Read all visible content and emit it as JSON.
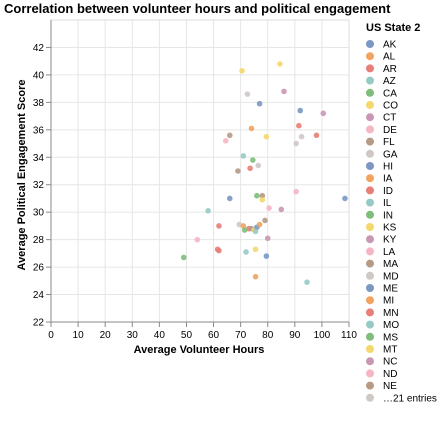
{
  "chart_data": {
    "type": "scatter",
    "title": "Correlation between volunteer hours and political engagement",
    "xlabel": "Average Volunteer Hours",
    "ylabel": "Average Political Engagement Score",
    "xlim": [
      0,
      110
    ],
    "ylim": [
      22,
      44
    ],
    "x_ticks": [
      0,
      10,
      20,
      30,
      40,
      50,
      60,
      70,
      80,
      90,
      100,
      110
    ],
    "y_ticks": [
      22,
      24,
      26,
      28,
      30,
      32,
      34,
      36,
      38,
      40,
      42
    ],
    "grid": true,
    "legend_position": "right",
    "legend": {
      "title": "US State 2",
      "entries": [
        {
          "label": "AK",
          "color": "#7b97c2"
        },
        {
          "label": "AL",
          "color": "#f2a35f"
        },
        {
          "label": "AR",
          "color": "#e87e78"
        },
        {
          "label": "AZ",
          "color": "#96cbc5"
        },
        {
          "label": "CA",
          "color": "#7fbe7a"
        },
        {
          "label": "CO",
          "color": "#f5d76e"
        },
        {
          "label": "CT",
          "color": "#c997b4"
        },
        {
          "label": "DE",
          "color": "#f5b6c3"
        },
        {
          "label": "FL",
          "color": "#b59a86"
        },
        {
          "label": "GA",
          "color": "#cfc8c6"
        },
        {
          "label": "HI",
          "color": "#7b97c2"
        },
        {
          "label": "IA",
          "color": "#f2a35f"
        },
        {
          "label": "ID",
          "color": "#e87e78"
        },
        {
          "label": "IL",
          "color": "#96cbc5"
        },
        {
          "label": "IN",
          "color": "#7fbe7a"
        },
        {
          "label": "KS",
          "color": "#f5d76e"
        },
        {
          "label": "KY",
          "color": "#c997b4"
        },
        {
          "label": "LA",
          "color": "#f5b6c3"
        },
        {
          "label": "MA",
          "color": "#b59a86"
        },
        {
          "label": "MD",
          "color": "#cfc8c6"
        },
        {
          "label": "ME",
          "color": "#7b97c2"
        },
        {
          "label": "MI",
          "color": "#f2a35f"
        },
        {
          "label": "MN",
          "color": "#e87e78"
        },
        {
          "label": "MO",
          "color": "#96cbc5"
        },
        {
          "label": "MS",
          "color": "#7fbe7a"
        },
        {
          "label": "MT",
          "color": "#f5d76e"
        },
        {
          "label": "NC",
          "color": "#c997b4"
        },
        {
          "label": "ND",
          "color": "#f5b6c3"
        },
        {
          "label": "NE",
          "color": "#b59a86"
        },
        {
          "label": "…21 entries",
          "color": "#cfc8c6"
        }
      ]
    },
    "points": [
      {
        "x": 84.5,
        "y": 40.8,
        "color": "#f5d76e"
      },
      {
        "x": 70.5,
        "y": 40.3,
        "color": "#f5d76e"
      },
      {
        "x": 72.5,
        "y": 38.6,
        "color": "#cfc8c6"
      },
      {
        "x": 86.0,
        "y": 38.8,
        "color": "#c997b4"
      },
      {
        "x": 77.0,
        "y": 37.9,
        "color": "#7b97c2"
      },
      {
        "x": 92.0,
        "y": 37.4,
        "color": "#7b97c2"
      },
      {
        "x": 100.5,
        "y": 37.2,
        "color": "#c997b4"
      },
      {
        "x": 74.0,
        "y": 36.1,
        "color": "#f2a35f"
      },
      {
        "x": 91.5,
        "y": 36.3,
        "color": "#e87e78"
      },
      {
        "x": 66.0,
        "y": 35.6,
        "color": "#b59a86"
      },
      {
        "x": 79.5,
        "y": 35.5,
        "color": "#f5d76e"
      },
      {
        "x": 92.5,
        "y": 35.5,
        "color": "#cfc8c6"
      },
      {
        "x": 98.0,
        "y": 35.6,
        "color": "#e87e78"
      },
      {
        "x": 64.5,
        "y": 35.2,
        "color": "#f5b6c3"
      },
      {
        "x": 90.5,
        "y": 35.0,
        "color": "#cfc8c6"
      },
      {
        "x": 71.0,
        "y": 34.1,
        "color": "#96cbc5"
      },
      {
        "x": 74.5,
        "y": 33.8,
        "color": "#7fbe7a"
      },
      {
        "x": 76.5,
        "y": 33.4,
        "color": "#cfc8c6"
      },
      {
        "x": 69.0,
        "y": 33.0,
        "color": "#b59a86"
      },
      {
        "x": 73.5,
        "y": 33.2,
        "color": "#e87e78"
      },
      {
        "x": 76.0,
        "y": 31.2,
        "color": "#7fbe7a"
      },
      {
        "x": 78.0,
        "y": 31.2,
        "color": "#b59a86"
      },
      {
        "x": 66.0,
        "y": 31.0,
        "color": "#7b97c2"
      },
      {
        "x": 90.5,
        "y": 31.5,
        "color": "#f5b6c3"
      },
      {
        "x": 108.5,
        "y": 31.0,
        "color": "#7b97c2"
      },
      {
        "x": 78.0,
        "y": 30.9,
        "color": "#f5d76e"
      },
      {
        "x": 80.5,
        "y": 30.3,
        "color": "#f5b6c3"
      },
      {
        "x": 85.0,
        "y": 30.2,
        "color": "#c997b4"
      },
      {
        "x": 58.0,
        "y": 30.1,
        "color": "#96cbc5"
      },
      {
        "x": 69.5,
        "y": 29.1,
        "color": "#cfc8c6"
      },
      {
        "x": 71.0,
        "y": 29.0,
        "color": "#f2a35f"
      },
      {
        "x": 73.0,
        "y": 28.8,
        "color": "#e87e78"
      },
      {
        "x": 71.5,
        "y": 28.7,
        "color": "#7fbe7a"
      },
      {
        "x": 74.0,
        "y": 28.8,
        "color": "#b59a86"
      },
      {
        "x": 75.0,
        "y": 28.7,
        "color": "#f5d76e"
      },
      {
        "x": 76.0,
        "y": 28.9,
        "color": "#7b97c2"
      },
      {
        "x": 77.0,
        "y": 29.1,
        "color": "#f2a35f"
      },
      {
        "x": 79.0,
        "y": 29.4,
        "color": "#b59a86"
      },
      {
        "x": 75.5,
        "y": 28.6,
        "color": "#96cbc5"
      },
      {
        "x": 62.0,
        "y": 29.0,
        "color": "#e87e78"
      },
      {
        "x": 80.0,
        "y": 28.1,
        "color": "#c997b4"
      },
      {
        "x": 54.0,
        "y": 28.0,
        "color": "#f5b6c3"
      },
      {
        "x": 61.5,
        "y": 27.3,
        "color": "#e87e78"
      },
      {
        "x": 62.0,
        "y": 27.2,
        "color": "#e87e78"
      },
      {
        "x": 72.0,
        "y": 27.1,
        "color": "#96cbc5"
      },
      {
        "x": 75.5,
        "y": 27.3,
        "color": "#f5d76e"
      },
      {
        "x": 79.5,
        "y": 26.8,
        "color": "#7b97c2"
      },
      {
        "x": 49.0,
        "y": 26.7,
        "color": "#7fbe7a"
      },
      {
        "x": 75.5,
        "y": 25.3,
        "color": "#f2a35f"
      },
      {
        "x": 94.5,
        "y": 24.9,
        "color": "#96cbc5"
      }
    ]
  }
}
